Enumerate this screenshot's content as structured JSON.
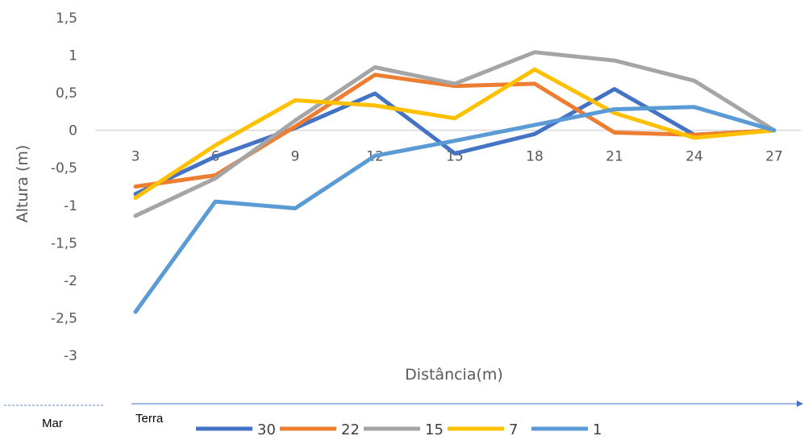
{
  "chart_data": {
    "type": "line",
    "title": "",
    "xlabel": "Distância(m)",
    "ylabel": "Altura (m)",
    "x": [
      3,
      6,
      9,
      12,
      15,
      18,
      21,
      24,
      27
    ],
    "x_tick_labels": [
      "3",
      "6",
      "9",
      "12",
      "15",
      "18",
      "21",
      "24",
      "27"
    ],
    "ylim": [
      -3,
      1.5
    ],
    "y_tick_labels": [
      "1,5",
      "1",
      "0,5",
      "0",
      "-0,5",
      "-1",
      "-1,5",
      "-2",
      "-2,5",
      "-3"
    ],
    "y_ticks": [
      1.5,
      1,
      0.5,
      0,
      -0.5,
      -1,
      -1.5,
      -2,
      -2.5,
      -3
    ],
    "grid": false,
    "legend_position": "bottom",
    "series": [
      {
        "name": "30",
        "color": "#4472C4",
        "values": [
          -0.85,
          -0.35,
          0.03,
          0.49,
          -0.31,
          -0.05,
          0.55,
          -0.06,
          0.0
        ]
      },
      {
        "name": "22",
        "color": "#ED7D31",
        "values": [
          -0.75,
          -0.6,
          0.05,
          0.74,
          0.59,
          0.62,
          -0.03,
          -0.06,
          0.0
        ]
      },
      {
        "name": "15",
        "color": "#A5A5A5",
        "values": [
          -1.14,
          -0.64,
          0.13,
          0.84,
          0.62,
          1.04,
          0.93,
          0.66,
          0.0
        ]
      },
      {
        "name": "7",
        "color": "#FFC000",
        "values": [
          -0.9,
          -0.2,
          0.4,
          0.33,
          0.16,
          0.81,
          0.23,
          -0.1,
          0.0
        ]
      },
      {
        "name": "1",
        "color": "#5B9BD5",
        "values": [
          -2.42,
          -0.95,
          -1.04,
          -0.34,
          -0.14,
          0.07,
          0.28,
          0.31,
          0.0
        ]
      }
    ]
  },
  "footer": {
    "left_label": "Mar",
    "right_label": "Terra"
  }
}
